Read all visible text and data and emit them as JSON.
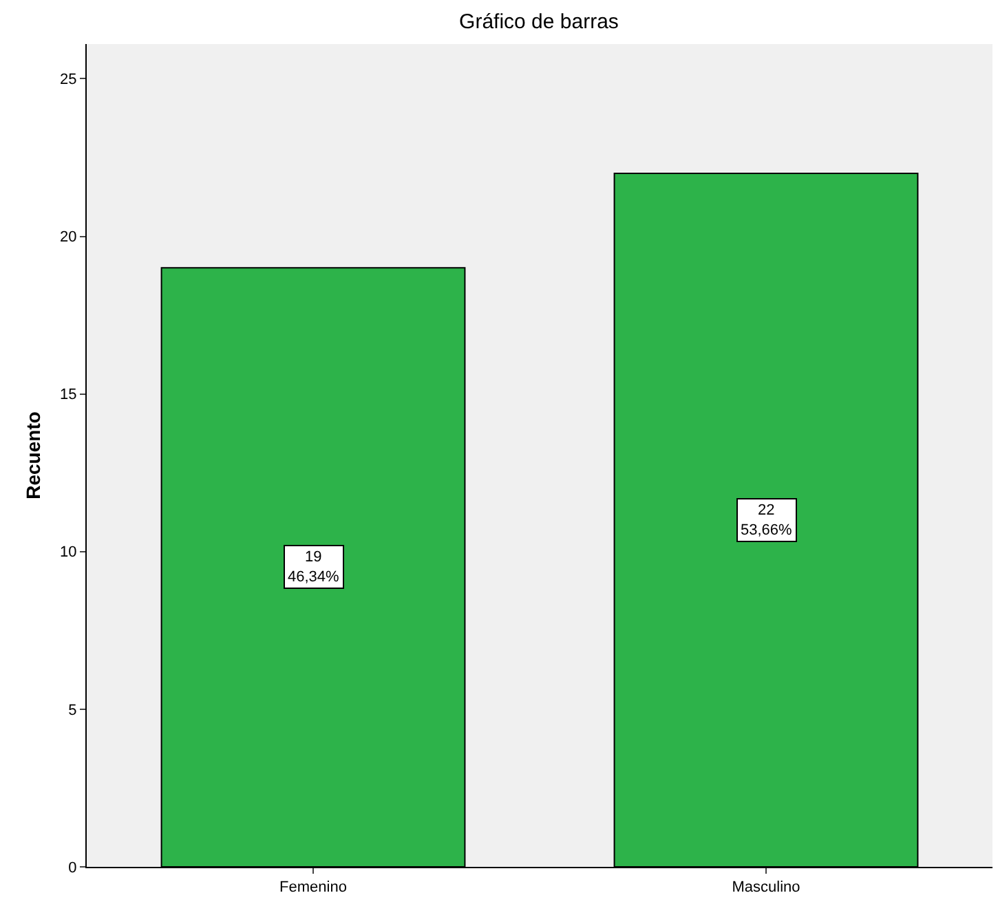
{
  "chart_data": {
    "type": "bar",
    "title": "Gráfico de barras",
    "ylabel": "Recuento",
    "categories": [
      "Femenino",
      "Masculino"
    ],
    "values": [
      19,
      22
    ],
    "color": "#2db34a",
    "value_labels": [
      "19\n46,34%",
      "22\n53,66%"
    ],
    "ylim": [
      0,
      26.1
    ],
    "yticks": [
      0,
      5,
      10,
      15,
      20,
      25
    ],
    "grid": false,
    "legend": false
  }
}
